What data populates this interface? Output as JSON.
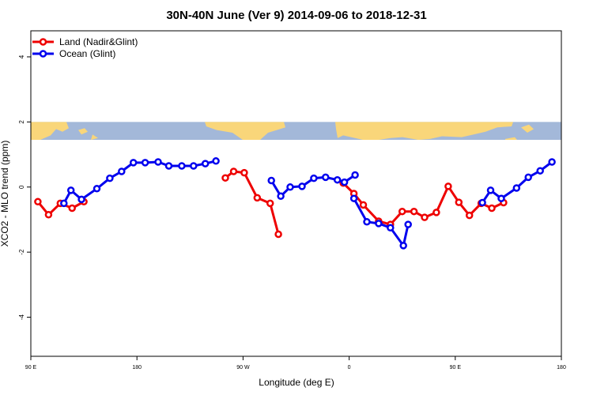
{
  "chart_data": {
    "type": "line",
    "title": "30N-40N June (Ver 9)   2014-09-06 to 2018-12-31",
    "xlabel": "Longitude (deg E)",
    "ylabel": "XCO2 - MLO trend (ppm)",
    "xlim": [
      90,
      540
    ],
    "ylim": [
      -5.2,
      4.8
    ],
    "x_ticks": [
      {
        "value": 90,
        "label": "90 E"
      },
      {
        "value": 180,
        "label": "180"
      },
      {
        "value": 270,
        "label": "90 W"
      },
      {
        "value": 360,
        "label": "0"
      },
      {
        "value": 450,
        "label": "90 E"
      },
      {
        "value": 540,
        "label": "180"
      }
    ],
    "y_ticks": [
      {
        "value": -4,
        "label": "-4"
      },
      {
        "value": -2,
        "label": "-2"
      },
      {
        "value": 0,
        "label": "0"
      },
      {
        "value": 2,
        "label": "2"
      },
      {
        "value": 4,
        "label": "4"
      }
    ],
    "grid": false,
    "legend_position": "top-left",
    "map_strip": {
      "description": "world map band",
      "ymin": 1.45,
      "ymax": 2.0,
      "ocean_color": "#a3b8d9",
      "land_color": "#f9d67a"
    },
    "series": [
      {
        "name": "Land (Nadir&Glint)",
        "color": "#ee0000",
        "segments": [
          [
            [
              96,
              -0.45
            ],
            [
              105,
              -0.85
            ],
            [
              115,
              -0.5
            ],
            [
              125,
              -0.65
            ],
            [
              135,
              -0.45
            ]
          ],
          [
            [
              255,
              0.28
            ],
            [
              262,
              0.48
            ],
            [
              271,
              0.44
            ],
            [
              282,
              -0.33
            ],
            [
              293,
              -0.5
            ],
            [
              300,
              -1.45
            ]
          ],
          [
            [
              355,
              0.12
            ],
            [
              364,
              -0.2
            ],
            [
              372,
              -0.55
            ],
            [
              385,
              -1.05
            ],
            [
              395,
              -1.15
            ],
            [
              405,
              -0.75
            ],
            [
              415,
              -0.75
            ],
            [
              424,
              -0.93
            ],
            [
              434,
              -0.78
            ],
            [
              444,
              0.02
            ],
            [
              453,
              -0.47
            ],
            [
              462,
              -0.87
            ],
            [
              472,
              -0.5
            ],
            [
              481,
              -0.65
            ],
            [
              491,
              -0.48
            ]
          ]
        ]
      },
      {
        "name": "Ocean (Glint)",
        "color": "#0000ee",
        "segments": [
          [
            [
              118,
              -0.5
            ],
            [
              124,
              -0.1
            ],
            [
              133,
              -0.38
            ],
            [
              146,
              -0.05
            ],
            [
              157,
              0.27
            ],
            [
              167,
              0.48
            ],
            [
              177,
              0.75
            ],
            [
              187,
              0.75
            ],
            [
              198,
              0.77
            ],
            [
              207,
              0.65
            ],
            [
              218,
              0.65
            ],
            [
              228,
              0.65
            ],
            [
              238,
              0.72
            ],
            [
              247,
              0.8
            ]
          ],
          [
            [
              294,
              0.2
            ],
            [
              302,
              -0.28
            ],
            [
              310,
              0.0
            ],
            [
              320,
              0.02
            ],
            [
              330,
              0.27
            ],
            [
              340,
              0.3
            ],
            [
              350,
              0.22
            ],
            [
              356,
              0.15
            ],
            [
              365,
              0.37
            ]
          ],
          [
            [
              364,
              -0.35
            ],
            [
              375,
              -1.07
            ],
            [
              385,
              -1.12
            ],
            [
              395,
              -1.25
            ],
            [
              406,
              -1.8
            ],
            [
              410,
              -1.15
            ]
          ],
          [
            [
              473,
              -0.48
            ],
            [
              480,
              -0.1
            ],
            [
              489,
              -0.35
            ],
            [
              502,
              -0.03
            ],
            [
              512,
              0.3
            ],
            [
              522,
              0.5
            ],
            [
              532,
              0.77
            ]
          ]
        ]
      }
    ]
  }
}
